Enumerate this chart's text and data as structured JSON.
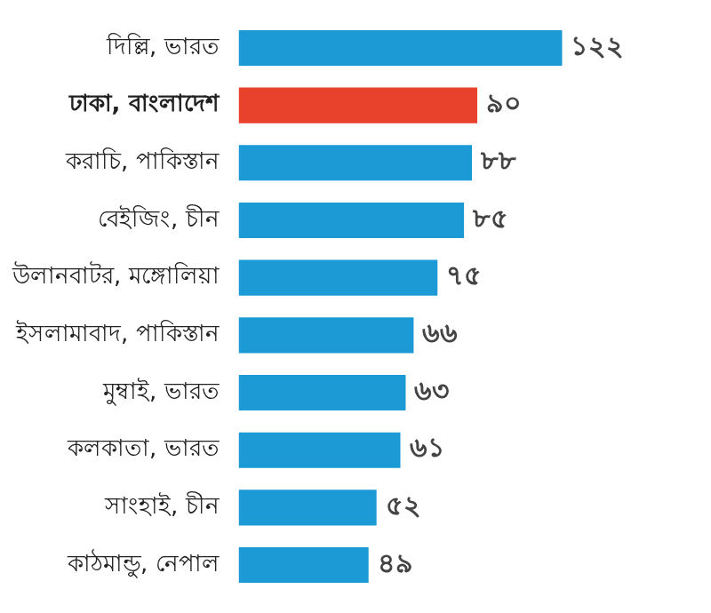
{
  "chart_data": {
    "type": "bar",
    "orientation": "horizontal",
    "categories": [
      "দিল্লি, ভারত",
      "ঢাকা, বাংলাদেশ",
      "করাচি, পাকিস্তান",
      "বেইজিং, চীন",
      "উলানবাটর, মঙ্গোলিয়া",
      "ইসলামাবাদ, পাকিস্তান",
      "মুম্বাই, ভারত",
      "কলকাতা, ভারত",
      "সাংহাই, চীন",
      "কাঠমান্ডু, নেপাল"
    ],
    "values": [
      122,
      90,
      88,
      85,
      75,
      66,
      63,
      61,
      52,
      49
    ],
    "colors": [
      "#1b9ad6",
      "#e8412c",
      "#1b9ad6",
      "#1b9ad6",
      "#1b9ad6",
      "#1b9ad6",
      "#1b9ad6",
      "#1b9ad6",
      "#1b9ad6",
      "#1b9ad6"
    ],
    "value_labels": [
      "১২২",
      "৯০",
      "৮৮",
      "৮৫",
      "৭৫",
      "৬৬",
      "৬৩",
      "৬১",
      "৫২",
      "৪৯"
    ]
  }
}
